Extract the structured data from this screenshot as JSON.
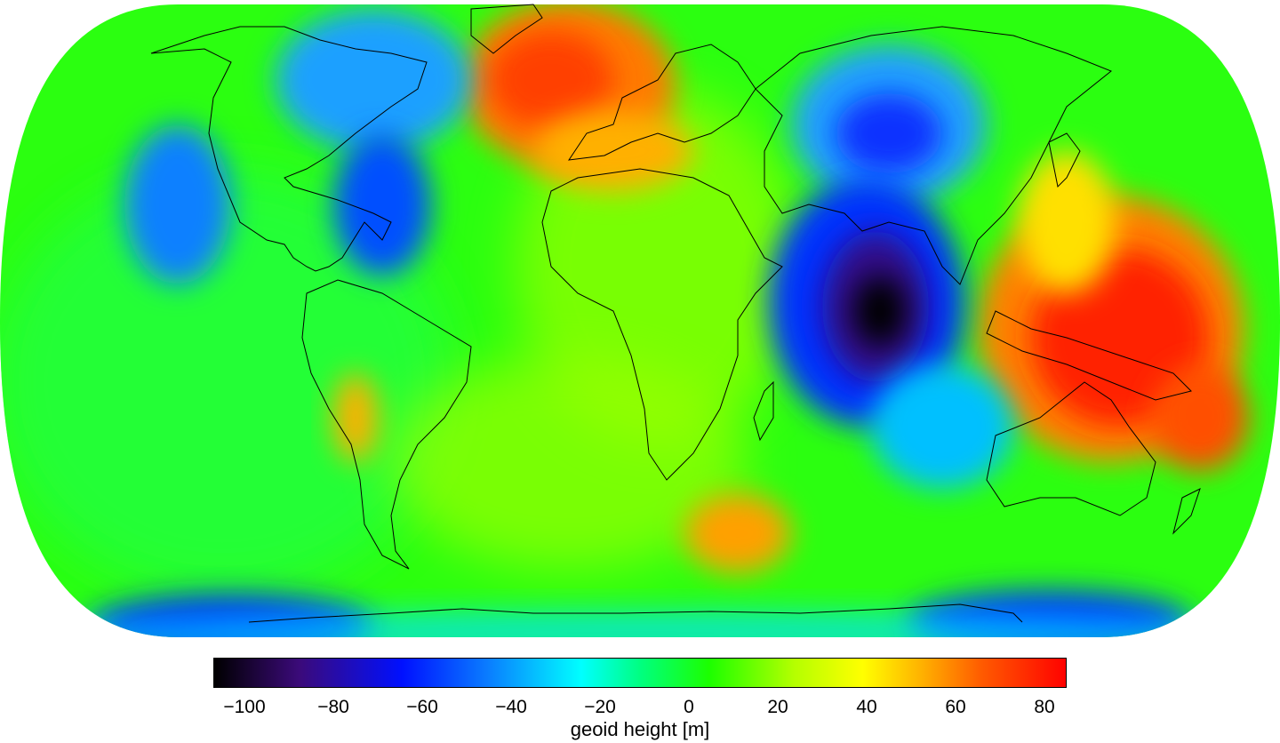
{
  "map": {
    "projection": "natural-earth",
    "colormap": [
      "#000000",
      "#3b0a7a",
      "#0010ff",
      "#0a7cff",
      "#00ffff",
      "#00ff7f",
      "#1cff00",
      "#b5ff00",
      "#ffff00",
      "#ffb000",
      "#ff5a00",
      "#ff0000"
    ],
    "features": [
      {
        "name": "indian-ocean-low",
        "value": -106
      },
      {
        "name": "northeast-pacific-low",
        "value": -45
      },
      {
        "name": "west-atlantic-low",
        "value": -55
      },
      {
        "name": "hudson-bay-low",
        "value": -40
      },
      {
        "name": "north-atlantic-high",
        "value": 65
      },
      {
        "name": "new-guinea-high",
        "value": 80
      },
      {
        "name": "south-atlantic-high",
        "value": 45
      },
      {
        "name": "antarctic-low",
        "value": -60
      }
    ]
  },
  "colorbar": {
    "min": -107,
    "max": 85,
    "ticks": [
      "−100",
      "−80",
      "−60",
      "−40",
      "−20",
      "0",
      "20",
      "40",
      "60",
      "80"
    ],
    "tick_values": [
      -100,
      -80,
      -60,
      -40,
      -20,
      0,
      20,
      40,
      60,
      80
    ],
    "label": "geoid height [m]"
  }
}
